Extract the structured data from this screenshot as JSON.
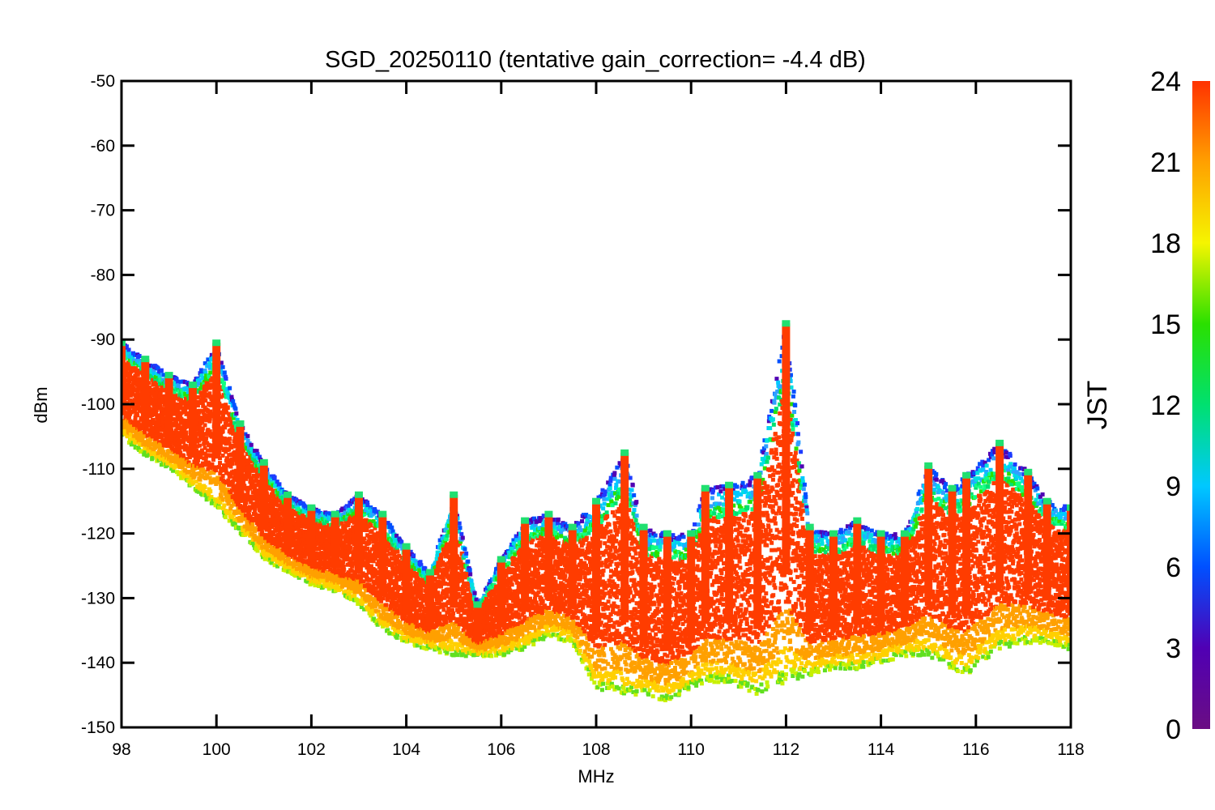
{
  "chart_data": {
    "type": "scatter",
    "title": "SGD_20250110 (tentative gain_correction= -4.4 dB)",
    "xlabel": "MHz",
    "ylabel": "dBm",
    "xlim": [
      98,
      118
    ],
    "ylim": [
      -150,
      -50
    ],
    "xticks": [
      "98",
      "100",
      "102",
      "104",
      "106",
      "108",
      "110",
      "112",
      "114",
      "116",
      "118"
    ],
    "yticks": [
      "-50",
      "-60",
      "-70",
      "-80",
      "-90",
      "-100",
      "-110",
      "-120",
      "-130",
      "-140",
      "-150"
    ],
    "colorbar": {
      "label": "JST",
      "range": [
        0,
        24
      ],
      "ticks": [
        "0",
        "3",
        "6",
        "9",
        "12",
        "15",
        "18",
        "21",
        "24"
      ],
      "colormap": "rainbow (purple-blue-cyan-green-yellow-orange-red)"
    },
    "grid": false,
    "series": [
      {
        "values": [
          {
            "x": 98.0,
            "top": -90.5,
            "bottom": -105
          },
          {
            "x": 98.5,
            "top": -93,
            "bottom": -108
          },
          {
            "x": 99.0,
            "top": -95.5,
            "bottom": -110
          },
          {
            "x": 99.5,
            "top": -97,
            "bottom": -113
          },
          {
            "x": 100.0,
            "top": -90.5,
            "bottom": -116
          },
          {
            "x": 100.5,
            "top": -103,
            "bottom": -120
          },
          {
            "x": 101.0,
            "top": -109,
            "bottom": -124
          },
          {
            "x": 101.5,
            "top": -114,
            "bottom": -126
          },
          {
            "x": 102.0,
            "top": -116,
            "bottom": -128
          },
          {
            "x": 102.5,
            "top": -117,
            "bottom": -129
          },
          {
            "x": 103.0,
            "top": -114,
            "bottom": -131
          },
          {
            "x": 103.5,
            "top": -117,
            "bottom": -135
          },
          {
            "x": 104.0,
            "top": -122,
            "bottom": -137
          },
          {
            "x": 104.5,
            "top": -126,
            "bottom": -138
          },
          {
            "x": 105.0,
            "top": -114,
            "bottom": -139
          },
          {
            "x": 105.5,
            "top": -131,
            "bottom": -139
          },
          {
            "x": 106.0,
            "top": -124,
            "bottom": -139
          },
          {
            "x": 106.5,
            "top": -118,
            "bottom": -138
          },
          {
            "x": 107.0,
            "top": -117,
            "bottom": -136
          },
          {
            "x": 107.5,
            "top": -119,
            "bottom": -137
          },
          {
            "x": 108.0,
            "top": -115,
            "bottom": -144
          },
          {
            "x": 108.6,
            "top": -107.5,
            "bottom": -145
          },
          {
            "x": 109.0,
            "top": -119,
            "bottom": -145
          },
          {
            "x": 109.5,
            "top": -120,
            "bottom": -146
          },
          {
            "x": 110.0,
            "top": -120,
            "bottom": -144
          },
          {
            "x": 110.3,
            "top": -113,
            "bottom": -143
          },
          {
            "x": 110.8,
            "top": -112.5,
            "bottom": -143
          },
          {
            "x": 111.4,
            "top": -111,
            "bottom": -145
          },
          {
            "x": 112.0,
            "top": -87.5,
            "bottom": -143
          },
          {
            "x": 112.5,
            "top": -119,
            "bottom": -142
          },
          {
            "x": 113.0,
            "top": -120,
            "bottom": -141
          },
          {
            "x": 113.5,
            "top": -118,
            "bottom": -141
          },
          {
            "x": 114.0,
            "top": -120,
            "bottom": -140
          },
          {
            "x": 114.5,
            "top": -120,
            "bottom": -139
          },
          {
            "x": 115.0,
            "top": -109.5,
            "bottom": -139
          },
          {
            "x": 115.5,
            "top": -113,
            "bottom": -141
          },
          {
            "x": 115.8,
            "top": -111,
            "bottom": -142
          },
          {
            "x": 116.5,
            "top": -106,
            "bottom": -138
          },
          {
            "x": 117.1,
            "top": -110.5,
            "bottom": -137
          },
          {
            "x": 117.5,
            "top": -115,
            "bottom": -137
          },
          {
            "x": 118.0,
            "top": -116,
            "bottom": -138
          }
        ]
      }
    ],
    "colors": {
      "jst_0": "#6a0d83",
      "jst_3": "#5000b4",
      "jst_6": "#0050ff",
      "jst_9": "#00c8ff",
      "jst_12": "#00e070",
      "jst_15": "#2ae000",
      "jst_18": "#f5f500",
      "jst_21": "#ffa000",
      "jst_24": "#ff3200"
    }
  }
}
